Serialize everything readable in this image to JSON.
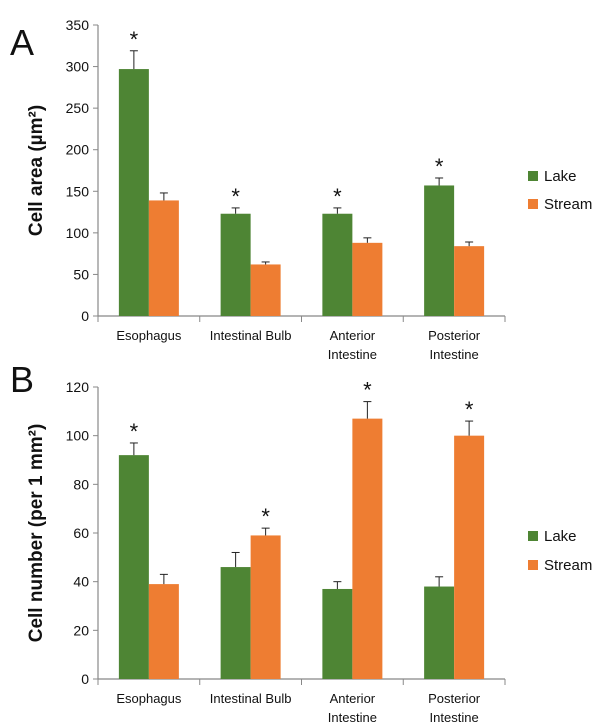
{
  "colors": {
    "lake": "#4e8534",
    "stream": "#ee7d32",
    "axis": "#888888",
    "error": "#222222"
  },
  "chart_data": [
    {
      "type": "bar",
      "panel": "A",
      "ylabel": "Cell area (µm²)",
      "ylim": [
        0,
        350
      ],
      "yticks": [
        0,
        50,
        100,
        150,
        200,
        250,
        300,
        350
      ],
      "categories": [
        [
          "Esophagus"
        ],
        [
          "Intestinal Bulb"
        ],
        [
          "Anterior",
          "Intestine"
        ],
        [
          "Posterior",
          "Intestine"
        ]
      ],
      "series": [
        {
          "name": "Lake",
          "values": [
            297,
            123,
            123,
            157
          ],
          "errors": [
            22,
            7,
            7,
            9
          ],
          "significant": [
            true,
            true,
            true,
            true
          ]
        },
        {
          "name": "Stream",
          "values": [
            139,
            62,
            88,
            84
          ],
          "errors": [
            9,
            3,
            6,
            5
          ],
          "significant": [
            false,
            false,
            false,
            false
          ]
        }
      ],
      "significance_marker": "*",
      "legend": "right"
    },
    {
      "type": "bar",
      "panel": "B",
      "ylabel": "Cell number (per 1 mm²)",
      "ylim": [
        0,
        120
      ],
      "yticks": [
        0,
        20,
        40,
        60,
        80,
        100,
        120
      ],
      "categories": [
        [
          "Esophagus"
        ],
        [
          "Intestinal Bulb"
        ],
        [
          "Anterior",
          "Intestine"
        ],
        [
          "Posterior",
          "Intestine"
        ]
      ],
      "series": [
        {
          "name": "Lake",
          "values": [
            92,
            46,
            37,
            38
          ],
          "errors": [
            5,
            6,
            3,
            4
          ],
          "significant": [
            true,
            false,
            false,
            false
          ]
        },
        {
          "name": "Stream",
          "values": [
            39,
            59,
            107,
            100
          ],
          "errors": [
            4,
            3,
            7,
            6
          ],
          "significant": [
            false,
            true,
            true,
            true
          ]
        }
      ],
      "significance_marker": "*",
      "legend": "right"
    }
  ]
}
